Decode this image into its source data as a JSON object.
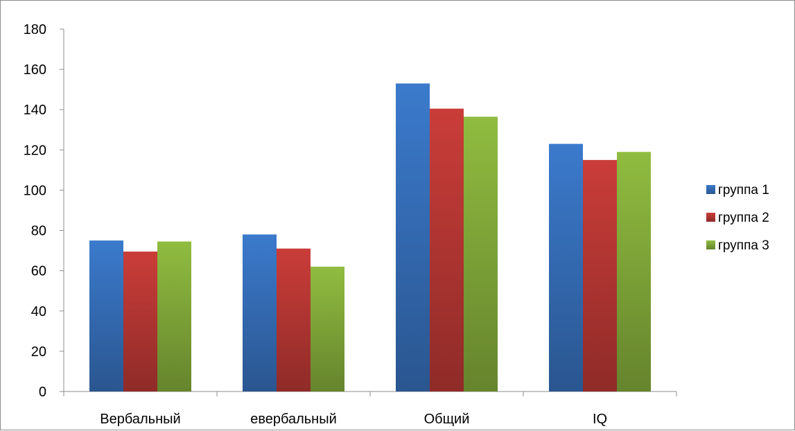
{
  "chart_data": {
    "type": "bar",
    "categories": [
      "Вербальный",
      "евербальный",
      "Общий",
      "IQ"
    ],
    "series": [
      {
        "name": "группа 1",
        "color": "#3a78c8",
        "values": [
          75,
          78,
          153,
          123
        ]
      },
      {
        "name": "группа 2",
        "color": "#c63c38",
        "values": [
          69.5,
          71,
          140.5,
          115
        ]
      },
      {
        "name": "группа 3",
        "color": "#8db83f",
        "values": [
          74.5,
          62,
          136.5,
          119
        ]
      }
    ],
    "y_ticks": [
      "0",
      "20",
      "40",
      "60",
      "80",
      "100",
      "120",
      "140",
      "160",
      "180"
    ],
    "ylim": [
      0,
      180
    ],
    "grid": false,
    "legend_position": "right"
  }
}
